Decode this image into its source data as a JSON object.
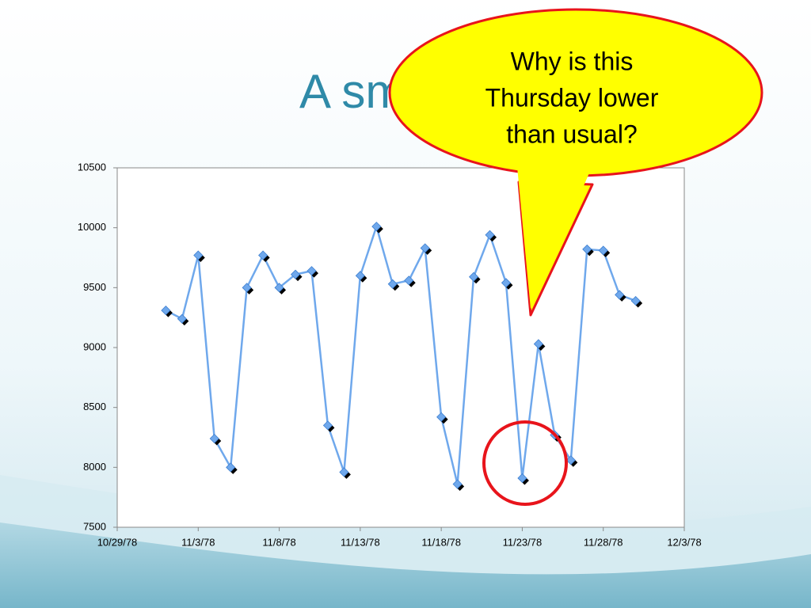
{
  "title": "A sm",
  "chart_data": {
    "type": "line",
    "x": [
      "11/1/78",
      "11/2/78",
      "11/3/78",
      "11/4/78",
      "11/5/78",
      "11/6/78",
      "11/7/78",
      "11/8/78",
      "11/9/78",
      "11/10/78",
      "11/11/78",
      "11/12/78",
      "11/13/78",
      "11/14/78",
      "11/15/78",
      "11/16/78",
      "11/17/78",
      "11/18/78",
      "11/19/78",
      "11/20/78",
      "11/21/78",
      "11/22/78",
      "11/23/78",
      "11/24/78",
      "11/25/78",
      "11/26/78",
      "11/27/78",
      "11/28/78",
      "11/29/78",
      "11/30/78"
    ],
    "values": [
      9310,
      9240,
      9770,
      8240,
      8000,
      9500,
      9770,
      9500,
      9610,
      9640,
      8350,
      7960,
      9600,
      10010,
      9530,
      9560,
      9830,
      8420,
      7860,
      9590,
      9940,
      9540,
      7910,
      9030,
      8270,
      8060,
      9820,
      9810,
      9440,
      9390
    ],
    "color": "#6fa8ec",
    "xlim": [
      "10/29/78",
      "12/3/78"
    ],
    "xticks": [
      "10/29/78",
      "11/3/78",
      "11/8/78",
      "11/13/78",
      "11/18/78",
      "11/23/78",
      "11/28/78",
      "12/3/78"
    ],
    "ylim": [
      7500,
      10500
    ],
    "yticks": [
      7500,
      8000,
      8500,
      9000,
      9500,
      10000,
      10500
    ]
  },
  "callout": {
    "lines": [
      "Why is this",
      "Thursday lower",
      "than usual?"
    ]
  }
}
